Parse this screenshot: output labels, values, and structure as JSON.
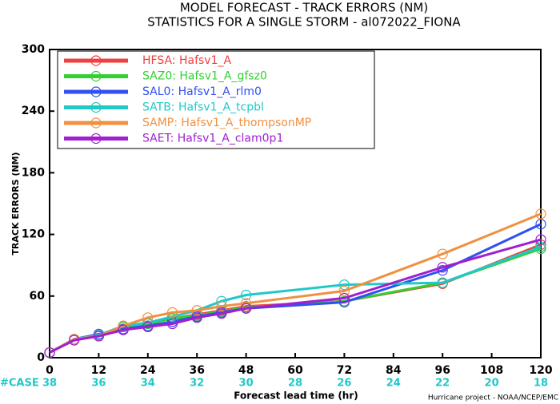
{
  "chart_data": {
    "type": "line",
    "title": "MODEL FORECAST - TRACK ERRORS (NM)",
    "subtitle": "STATISTICS FOR A SINGLE STORM - al072022_FIONA",
    "x_label": "Forecast lead time (hr)",
    "y_label": "TRACK ERRORS (NM)",
    "footer": "Hurricane project - NOAA/NCEP/EMC",
    "case_label": "#CASE",
    "cases": [
      38,
      36,
      34,
      32,
      30,
      28,
      26,
      24,
      22,
      20,
      18
    ],
    "x": [
      0,
      6,
      12,
      18,
      24,
      30,
      36,
      42,
      48,
      72,
      96,
      120
    ],
    "xlim": [
      0,
      120
    ],
    "xticks": [
      0,
      12,
      24,
      36,
      48,
      60,
      72,
      84,
      96,
      108,
      120
    ],
    "ylim": [
      0,
      300
    ],
    "yticks": [
      0,
      60,
      120,
      180,
      240,
      300
    ],
    "legend": "upper-left",
    "series": [
      {
        "name": "HFSA: Hafsv1_A",
        "color": "#f04040",
        "values": [
          5,
          18,
          22,
          30,
          34,
          38,
          42,
          46,
          50,
          55,
          72,
          110
        ]
      },
      {
        "name": "SAZ0: Hafsv1_A_gfsz0",
        "color": "#30d030",
        "values": [
          5,
          18,
          21,
          30,
          33,
          38,
          41,
          45,
          49,
          55,
          73,
          106
        ]
      },
      {
        "name": "SAL0: Hafsv1_A_rlm0",
        "color": "#3050f0",
        "values": [
          5,
          18,
          23,
          28,
          31,
          35,
          40,
          44,
          48,
          54,
          85,
          130
        ]
      },
      {
        "name": "SATB: Hafsv1_A_tcpbl",
        "color": "#20c8c8",
        "values": [
          5,
          18,
          22,
          31,
          34,
          40,
          46,
          55,
          61,
          71,
          73,
          108
        ]
      },
      {
        "name": "SAMP: Hafsv1_A_thompsonMP",
        "color": "#f09040",
        "values": [
          5,
          18,
          21,
          31,
          39,
          44,
          46,
          50,
          53,
          65,
          101,
          140
        ]
      },
      {
        "name": "SAET: Hafsv1_A_clam0p1",
        "color": "#a020d0",
        "values": [
          5,
          17,
          21,
          27,
          30,
          33,
          39,
          43,
          48,
          58,
          88,
          115
        ]
      }
    ]
  }
}
